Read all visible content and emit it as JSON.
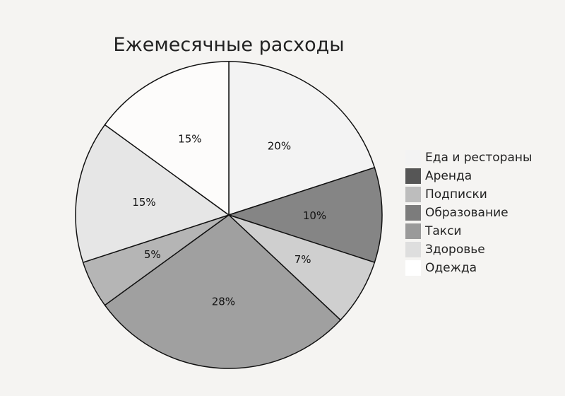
{
  "chart_data": {
    "type": "pie",
    "title": "Ежемесячные расходы",
    "legend_position": "right",
    "slices": [
      {
        "label": "Еда и рестораны",
        "value": 20,
        "value_label": "20%",
        "color": "#f3f3f3"
      },
      {
        "label": "Аренда",
        "value": 10,
        "value_label": "10%",
        "color": "#858585"
      },
      {
        "label": "Подписки",
        "value": 7,
        "value_label": "7%",
        "color": "#cfcfcf"
      },
      {
        "label": "Образование",
        "value": 28,
        "value_label": "28%",
        "color": "#a0a0a0"
      },
      {
        "label": "Такси",
        "value": 5,
        "value_label": "5%",
        "color": "#b5b5b5"
      },
      {
        "label": "Здоровье",
        "value": 15,
        "value_label": "15%",
        "color": "#e6e6e6"
      },
      {
        "label": "Одежда",
        "value": 15,
        "value_label": "15%",
        "color": "#fdfcfb"
      }
    ],
    "legend": [
      {
        "label": "Еда и рестораны",
        "color": "#f3f3f3"
      },
      {
        "label": "Аренда",
        "color": "#565656"
      },
      {
        "label": "Подписки",
        "color": "#bdbdbd"
      },
      {
        "label": "Образование",
        "color": "#7c7c7c"
      },
      {
        "label": "Такси",
        "color": "#9a9a9a"
      },
      {
        "label": "Здоровье",
        "color": "#dedede"
      },
      {
        "label": "Одежда",
        "color": "#ffffff"
      }
    ]
  }
}
